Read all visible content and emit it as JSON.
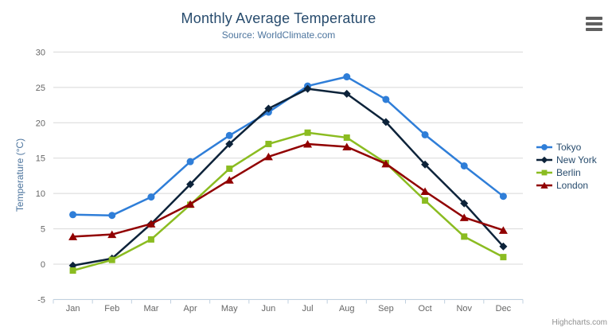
{
  "header": {
    "title": "Monthly Average Temperature",
    "subtitle": "Source: WorldClimate.com"
  },
  "credits": {
    "label": "Highcharts.com"
  },
  "icons": {
    "menu": "hamburger-icon"
  },
  "axis_colors": {
    "grid_line": "#D8D8D8",
    "axis_line": "#C0D0E0",
    "tick_label": "#666666",
    "axis_title": "#4d759e",
    "title_text": "#274b6d",
    "subtitle_text": "#4d759e",
    "legend_text": "#274b6d",
    "credits_text": "#909090"
  },
  "chart_data": {
    "type": "line",
    "title": "Monthly Average Temperature",
    "subtitle": "Source: WorldClimate.com",
    "xlabel": "",
    "ylabel": "Temperature (°C)",
    "ylim": [
      -5,
      30
    ],
    "yticks": [
      -5,
      0,
      5,
      10,
      15,
      20,
      25,
      30
    ],
    "grid": true,
    "legend_position": "right-middle",
    "categories": [
      "Jan",
      "Feb",
      "Mar",
      "Apr",
      "May",
      "Jun",
      "Jul",
      "Aug",
      "Sep",
      "Oct",
      "Nov",
      "Dec"
    ],
    "series": [
      {
        "name": "Tokyo",
        "color": "#2f7ed8",
        "marker": "circle",
        "values": [
          7.0,
          6.9,
          9.5,
          14.5,
          18.2,
          21.5,
          25.2,
          26.5,
          23.3,
          18.3,
          13.9,
          9.6
        ]
      },
      {
        "name": "New York",
        "color": "#0d233a",
        "marker": "diamond",
        "values": [
          -0.2,
          0.8,
          5.7,
          11.3,
          17.0,
          22.0,
          24.8,
          24.1,
          20.1,
          14.1,
          8.6,
          2.5
        ]
      },
      {
        "name": "Berlin",
        "color": "#8bbc21",
        "marker": "square",
        "values": [
          -0.9,
          0.6,
          3.5,
          8.4,
          13.5,
          17.0,
          18.6,
          17.9,
          14.3,
          9.0,
          3.9,
          1.0
        ]
      },
      {
        "name": "London",
        "color": "#910000",
        "marker": "triangle",
        "values": [
          3.9,
          4.2,
          5.7,
          8.5,
          11.9,
          15.2,
          17.0,
          16.6,
          14.2,
          10.3,
          6.6,
          4.8
        ]
      }
    ]
  }
}
